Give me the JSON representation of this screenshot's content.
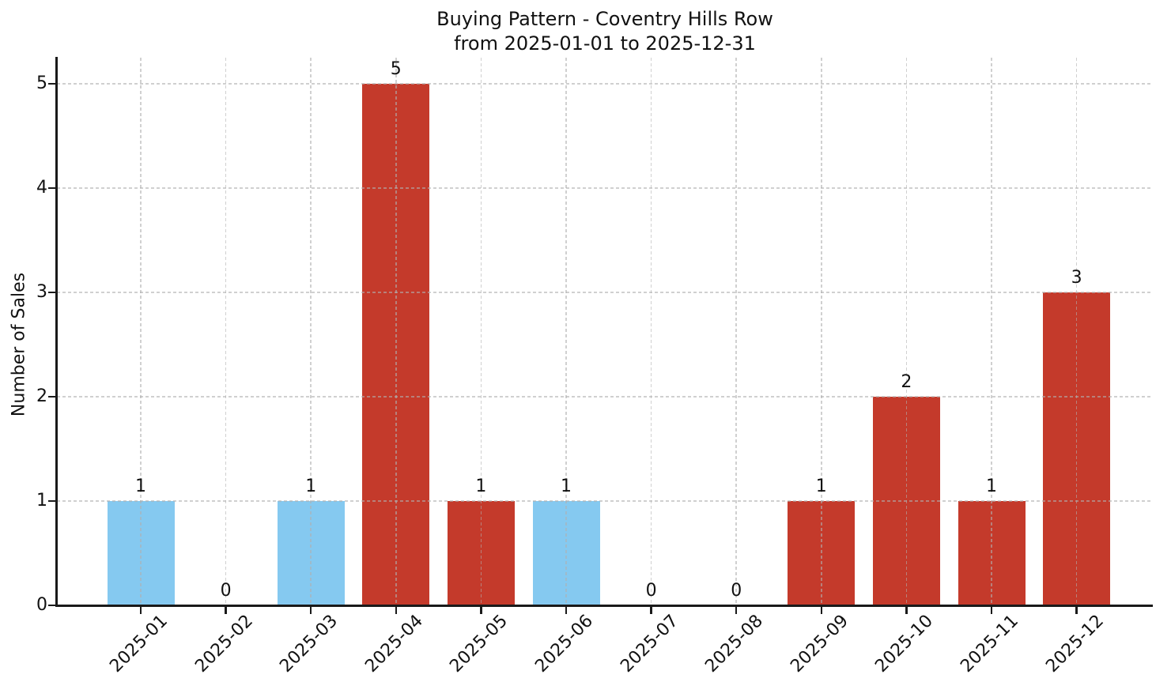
{
  "chart_data": {
    "type": "bar",
    "title": "Buying Pattern - Coventry Hills Row",
    "subtitle": "from 2025-01-01 to 2025-12-31",
    "xlabel": "",
    "ylabel": "Number of Sales",
    "categories": [
      "2025-01",
      "2025-02",
      "2025-03",
      "2025-04",
      "2025-05",
      "2025-06",
      "2025-07",
      "2025-08",
      "2025-09",
      "2025-10",
      "2025-11",
      "2025-12"
    ],
    "values": [
      1,
      0,
      1,
      5,
      1,
      1,
      0,
      0,
      1,
      2,
      1,
      3
    ],
    "bar_value_labels": [
      "1",
      "0",
      "1",
      "5",
      "1",
      "1",
      "0",
      "0",
      "1",
      "2",
      "1",
      "3"
    ],
    "bar_colors": [
      "#85C9F0",
      null,
      "#85C9F0",
      "#C43A2B",
      "#C43A2B",
      "#85C9F0",
      null,
      null,
      "#C43A2B",
      "#C43A2B",
      "#C43A2B",
      "#C43A2B"
    ],
    "yticks": [
      0,
      1,
      2,
      3,
      4,
      5
    ],
    "ylim": [
      0,
      5.25
    ],
    "grid": true,
    "grid_linestyle": "dashed",
    "grid_axes": "both",
    "legend": null,
    "colors": {
      "bar_blue": "#85C9F0",
      "bar_red": "#C43A2B",
      "grid": "#B0B0B0",
      "axis": "#1A1A1A",
      "text": "#111111",
      "background": "#FFFFFF"
    }
  }
}
